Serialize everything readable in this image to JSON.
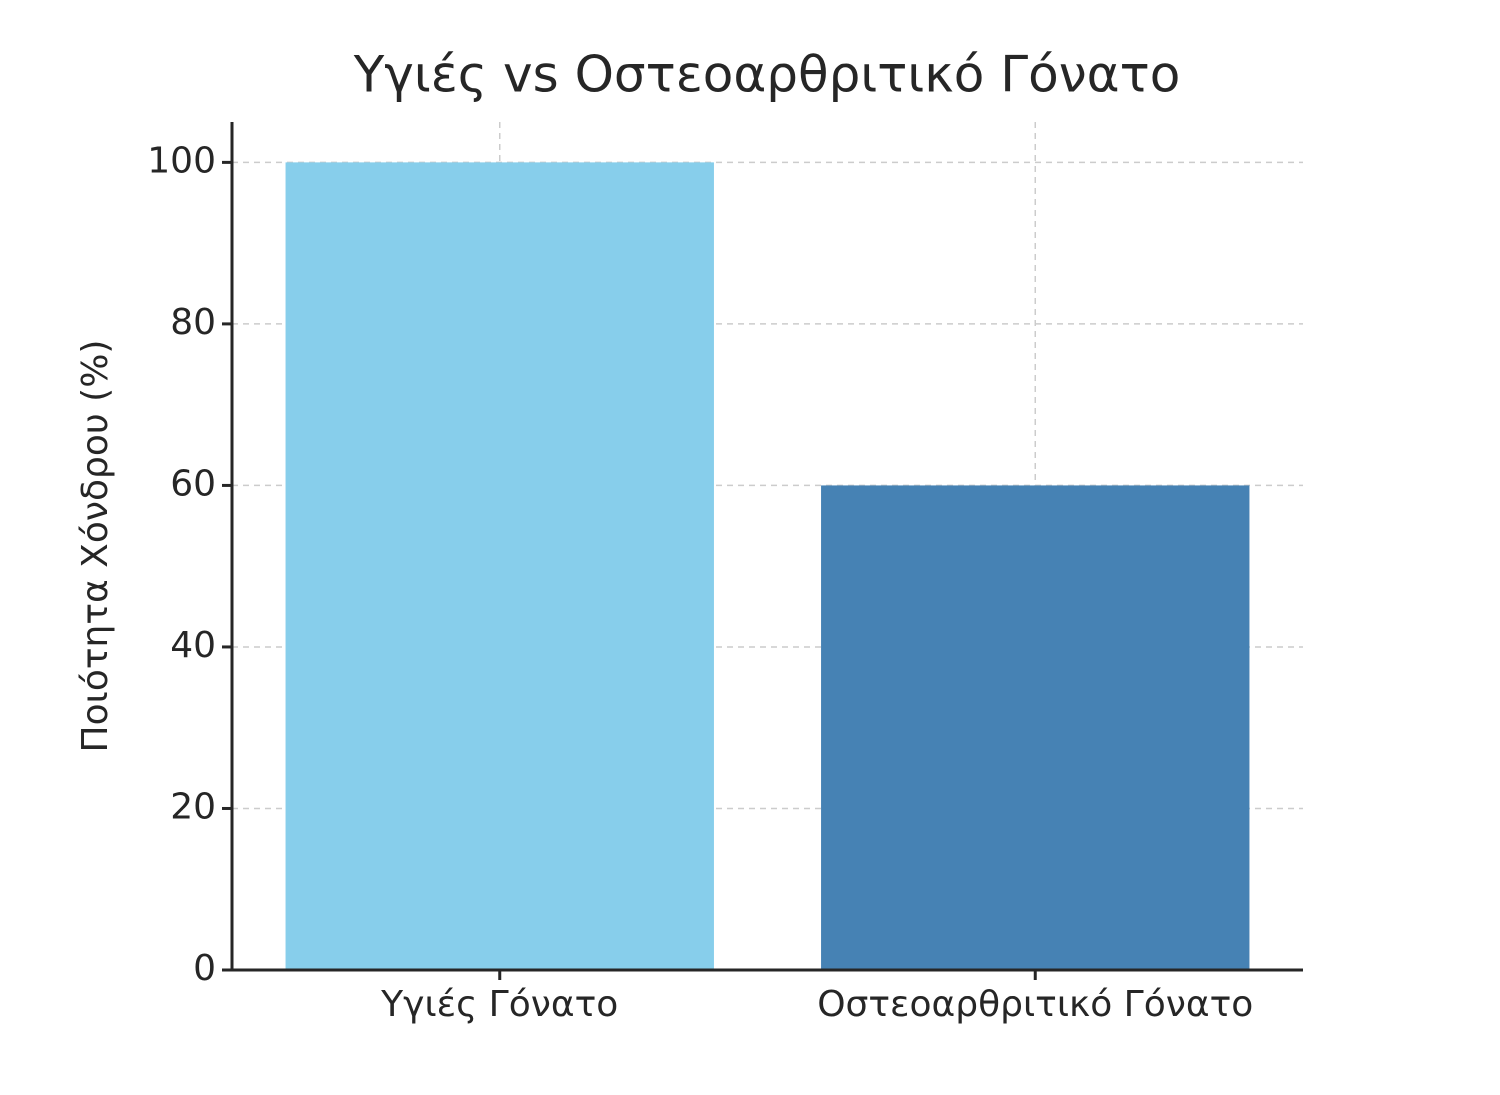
{
  "chart_data": {
    "type": "bar",
    "title": "Υγιές vs Οστεοαρθριτικό Γόνατο",
    "y_label": "Ποιότητα Χόνδρου (%)",
    "categories": [
      "Υγιές Γόνατο",
      "Οστεοαρθριτικό Γόνατο"
    ],
    "values": [
      100,
      60
    ],
    "colors": [
      "#87ceeb",
      "#4682b4"
    ],
    "ylim": [
      0,
      105
    ],
    "yticks": [
      0,
      20,
      40,
      60,
      80,
      100
    ],
    "grid": true
  }
}
